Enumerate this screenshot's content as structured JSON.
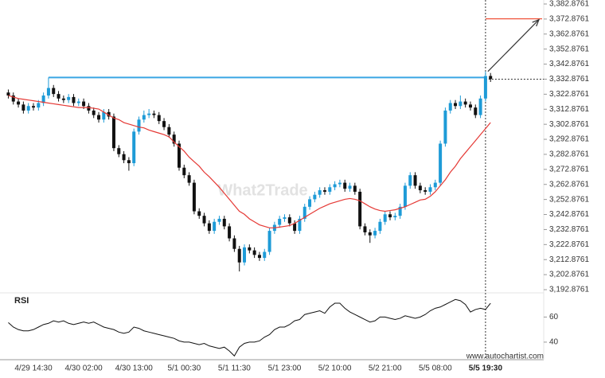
{
  "chart_data": {
    "type": "candlestick",
    "watermark": "What2Trade",
    "source": "www.autochartist.com",
    "up_color": "#1e9bd7",
    "down_color": "#111111",
    "ma_color": "#e53935",
    "resistance_color": "#3aa6e4",
    "target_color": "#f0553b",
    "categories": [
      null,
      null,
      null,
      null,
      null,
      "4/29 14:30",
      null,
      null,
      null,
      null,
      null,
      null,
      null,
      null,
      null,
      "4/30 02:00",
      null,
      null,
      null,
      null,
      null,
      null,
      null,
      null,
      null,
      "4/30 13:00",
      null,
      null,
      null,
      null,
      null,
      null,
      null,
      null,
      null,
      "5/1 00:30",
      null,
      null,
      null,
      null,
      null,
      null,
      null,
      null,
      null,
      "5/1 11:30",
      null,
      null,
      null,
      null,
      null,
      null,
      null,
      null,
      null,
      "5/1 23:00",
      null,
      null,
      null,
      null,
      null,
      null,
      null,
      null,
      null,
      "5/2 10:00",
      null,
      null,
      null,
      null,
      null,
      null,
      null,
      null,
      null,
      "5/2 21:00",
      null,
      null,
      null,
      null,
      null,
      null,
      null,
      null,
      null,
      "5/5 08:00",
      null,
      null,
      null,
      null,
      null,
      null,
      null,
      null,
      null,
      "5/5 19:30",
      null
    ],
    "current_index": 95,
    "open": [
      3324,
      3322,
      3318,
      3316,
      3312,
      3315,
      3314,
      3317,
      3322,
      3327,
      3323,
      3320,
      3319,
      3321,
      3317,
      3318,
      3315,
      3312,
      3309,
      3306,
      3311,
      3308,
      3287,
      3283,
      3279,
      3277,
      3298,
      3306,
      3309,
      3310,
      3309,
      3305,
      3301,
      3296,
      3290,
      3274,
      3269,
      3264,
      3245,
      3242,
      3237,
      3232,
      3238,
      3240,
      3235,
      3227,
      3220,
      3211,
      3221,
      3219,
      3216,
      3214,
      3218,
      3232,
      3236,
      3240,
      3241,
      3237,
      3232,
      3240,
      3248,
      3253,
      3256,
      3259,
      3258,
      3261,
      3263,
      3264,
      3260,
      3262,
      3258,
      3235,
      3231,
      3229,
      3232,
      3238,
      3243,
      3241,
      3242,
      3248,
      3262,
      3269,
      3262,
      3259,
      3258,
      3261,
      3264,
      3290,
      3312,
      3317,
      3315,
      3318,
      3316,
      3314,
      3309,
      3320,
      3335
    ],
    "high": [
      3326,
      3324,
      3320,
      3318,
      3317,
      3317,
      3319,
      3324,
      3334,
      3329,
      3325,
      3322,
      3323,
      3323,
      3320,
      3320,
      3317,
      3314,
      3311,
      3313,
      3313,
      3310,
      3289,
      3285,
      3281,
      3300,
      3308,
      3312,
      3313,
      3312,
      3311,
      3307,
      3303,
      3298,
      3292,
      3276,
      3271,
      3266,
      3247,
      3244,
      3239,
      3240,
      3242,
      3242,
      3237,
      3229,
      3222,
      3223,
      3223,
      3221,
      3218,
      3220,
      3234,
      3238,
      3242,
      3243,
      3243,
      3239,
      3242,
      3250,
      3255,
      3258,
      3261,
      3261,
      3263,
      3265,
      3266,
      3266,
      3264,
      3264,
      3260,
      3237,
      3233,
      3234,
      3240,
      3245,
      3245,
      3244,
      3250,
      3264,
      3271,
      3271,
      3264,
      3261,
      3263,
      3266,
      3292,
      3314,
      3319,
      3319,
      3322,
      3320,
      3318,
      3316,
      3322,
      3338,
      3337
    ],
    "low": [
      3320,
      3316,
      3314,
      3310,
      3310,
      3312,
      3312,
      3315,
      3320,
      3321,
      3318,
      3317,
      3317,
      3315,
      3315,
      3313,
      3310,
      3307,
      3304,
      3304,
      3306,
      3285,
      3281,
      3277,
      3272,
      3275,
      3296,
      3304,
      3307,
      3307,
      3303,
      3299,
      3294,
      3288,
      3272,
      3267,
      3262,
      3243,
      3240,
      3235,
      3230,
      3230,
      3236,
      3233,
      3225,
      3218,
      3205,
      3209,
      3217,
      3214,
      3212,
      3212,
      3216,
      3230,
      3234,
      3238,
      3235,
      3230,
      3230,
      3238,
      3246,
      3251,
      3254,
      3256,
      3256,
      3259,
      3261,
      3258,
      3258,
      3256,
      3233,
      3229,
      3224,
      3227,
      3230,
      3236,
      3239,
      3239,
      3240,
      3246,
      3260,
      3260,
      3257,
      3256,
      3256,
      3259,
      3262,
      3288,
      3310,
      3313,
      3313,
      3314,
      3312,
      3307,
      3307,
      3318,
      3331
    ],
    "close": [
      3322,
      3318,
      3316,
      3312,
      3315,
      3314,
      3317,
      3322,
      3327,
      3323,
      3320,
      3319,
      3321,
      3317,
      3318,
      3315,
      3312,
      3309,
      3306,
      3311,
      3308,
      3287,
      3283,
      3279,
      3277,
      3298,
      3306,
      3309,
      3310,
      3309,
      3305,
      3301,
      3296,
      3290,
      3274,
      3269,
      3264,
      3245,
      3242,
      3237,
      3232,
      3238,
      3240,
      3235,
      3227,
      3220,
      3211,
      3221,
      3219,
      3216,
      3214,
      3218,
      3232,
      3236,
      3240,
      3241,
      3237,
      3232,
      3240,
      3248,
      3253,
      3256,
      3259,
      3258,
      3261,
      3263,
      3264,
      3260,
      3262,
      3258,
      3235,
      3231,
      3229,
      3232,
      3238,
      3243,
      3241,
      3242,
      3248,
      3262,
      3269,
      3262,
      3259,
      3258,
      3261,
      3264,
      3290,
      3312,
      3317,
      3315,
      3318,
      3316,
      3314,
      3309,
      3320,
      3335,
      3333
    ],
    "ma": [
      3322,
      3321,
      3320,
      3319.5,
      3319,
      3318.5,
      3318,
      3317.5,
      3317,
      3316.5,
      3316,
      3315.5,
      3315,
      3314.5,
      3314,
      3314,
      3314,
      3313.5,
      3313,
      3311,
      3309,
      3307,
      3306,
      3304,
      3303,
      3302,
      3301,
      3300.5,
      3299,
      3298,
      3297,
      3296,
      3294.5,
      3291,
      3288,
      3285,
      3281,
      3278,
      3275,
      3271,
      3268,
      3264.5,
      3261,
      3257,
      3253,
      3249,
      3245,
      3243,
      3240,
      3238,
      3236,
      3235,
      3234,
      3234,
      3234.5,
      3235,
      3235.5,
      3237,
      3239,
      3241,
      3243,
      3245,
      3247,
      3248.5,
      3250,
      3251,
      3252,
      3253,
      3253.5,
      3253,
      3252,
      3250,
      3248,
      3246.5,
      3245.5,
      3245,
      3245.5,
      3246,
      3247,
      3248,
      3249.5,
      3251,
      3252.5,
      3253,
      3255,
      3258,
      3262,
      3266,
      3271,
      3275,
      3280,
      3284,
      3288,
      3292,
      3296,
      3300,
      3304
    ],
    "resistance_level": 3334,
    "resistance_start": 8,
    "target_level": 3373,
    "current_price": 3332.8761,
    "ylim": [
      3192.8761,
      3382.8761
    ],
    "yticks": [
      {
        "value": 3382.8761,
        "label": "3,382.8761"
      },
      {
        "value": 3372.8761,
        "label": "3,372.8761"
      },
      {
        "value": 3362.8761,
        "label": "3,362.8761"
      },
      {
        "value": 3352.8761,
        "label": "3,352.8761"
      },
      {
        "value": 3342.8761,
        "label": "3,342.8761"
      },
      {
        "value": 3332.8761,
        "label": "3,332.8761"
      },
      {
        "value": 3322.8761,
        "label": "3,322.8761"
      },
      {
        "value": 3312.8761,
        "label": "3,312.8761"
      },
      {
        "value": 3302.8761,
        "label": "3,302.8761"
      },
      {
        "value": 3292.8761,
        "label": "3,292.8761"
      },
      {
        "value": 3282.8761,
        "label": "3,282.8761"
      },
      {
        "value": 3272.8761,
        "label": "3,272.8761"
      },
      {
        "value": 3262.8761,
        "label": "3,262.8761"
      },
      {
        "value": 3252.8761,
        "label": "3,252.8761"
      },
      {
        "value": 3242.8761,
        "label": "3,242.8761"
      },
      {
        "value": 3232.8761,
        "label": "3,232.8761"
      },
      {
        "value": 3222.8761,
        "label": "3,222.8761"
      },
      {
        "value": 3212.8761,
        "label": "3,212.8761"
      },
      {
        "value": 3202.8761,
        "label": "3,202.8761"
      },
      {
        "value": 3192.8761,
        "label": "3,192.8761"
      }
    ],
    "rsi": {
      "title": "RSI",
      "color": "#111111",
      "values": [
        55.6,
        52,
        50,
        49,
        49,
        50,
        52,
        54,
        55,
        57,
        56,
        57,
        55,
        54,
        55,
        56,
        55,
        56,
        54,
        52,
        51,
        50,
        48,
        47,
        48,
        52,
        51,
        49,
        48,
        47,
        46,
        45,
        44,
        43,
        41,
        40,
        40,
        39,
        38,
        39,
        37,
        36,
        35,
        36,
        33,
        29,
        36,
        39,
        40,
        40,
        41,
        44,
        46,
        50,
        52,
        52,
        54,
        57,
        58,
        62,
        63,
        64,
        65,
        63,
        68,
        71,
        71,
        67,
        64,
        62,
        60,
        58,
        56,
        57,
        60,
        60,
        59,
        58,
        59,
        61,
        60,
        59,
        60,
        62,
        65,
        67,
        68,
        70,
        72,
        74,
        73,
        70,
        64,
        66,
        67,
        66,
        71
      ],
      "ylim": [
        26,
        78
      ],
      "yticks": [
        60,
        40
      ]
    }
  }
}
